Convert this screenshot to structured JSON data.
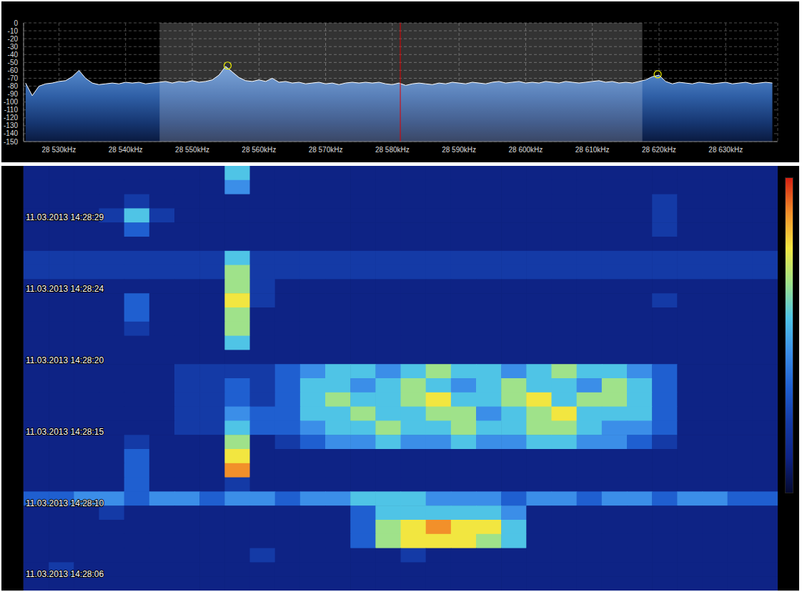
{
  "chart_data": [
    {
      "type": "area",
      "x": [
        28525,
        28526,
        28527,
        28528,
        28529,
        28530,
        28531,
        28532,
        28533,
        28534,
        28535,
        28536,
        28537,
        28538,
        28539,
        28540,
        28541,
        28542,
        28543,
        28544,
        28545,
        28546,
        28547,
        28548,
        28549,
        28550,
        28551,
        28552,
        28553,
        28554,
        28555,
        28556,
        28557,
        28558,
        28559,
        28560,
        28561,
        28562,
        28563,
        28564,
        28565,
        28566,
        28567,
        28568,
        28569,
        28570,
        28571,
        28572,
        28573,
        28574,
        28575,
        28576,
        28577,
        28578,
        28579,
        28580,
        28581,
        28582,
        28583,
        28584,
        28585,
        28586,
        28587,
        28588,
        28589,
        28590,
        28591,
        28592,
        28593,
        28594,
        28595,
        28596,
        28597,
        28598,
        28599,
        28600,
        28601,
        28602,
        28603,
        28604,
        28605,
        28606,
        28607,
        28608,
        28609,
        28610,
        28611,
        28612,
        28613,
        28614,
        28615,
        28616,
        28617,
        28618,
        28619,
        28620,
        28621,
        28622,
        28623,
        28624,
        28625,
        28626,
        28627,
        28628,
        28629,
        28630,
        28631,
        28632,
        28633,
        28634,
        28635,
        28636,
        28637
      ],
      "values": [
        -76,
        -92,
        -80,
        -77,
        -76,
        -74,
        -73,
        -68,
        -60,
        -70,
        -76,
        -78,
        -77,
        -76,
        -77,
        -75,
        -76,
        -75,
        -77,
        -76,
        -75,
        -74,
        -76,
        -74,
        -75,
        -73,
        -75,
        -74,
        -72,
        -66,
        -55,
        -62,
        -69,
        -73,
        -74,
        -72,
        -74,
        -70,
        -75,
        -74,
        -76,
        -75,
        -77,
        -76,
        -75,
        -77,
        -76,
        -78,
        -76,
        -75,
        -76,
        -75,
        -76,
        -75,
        -77,
        -78,
        -76,
        -79,
        -77,
        -76,
        -77,
        -78,
        -76,
        -77,
        -75,
        -76,
        -77,
        -75,
        -76,
        -77,
        -75,
        -74,
        -76,
        -75,
        -74,
        -76,
        -75,
        -76,
        -74,
        -75,
        -76,
        -74,
        -75,
        -76,
        -75,
        -74,
        -73,
        -75,
        -74,
        -76,
        -75,
        -76,
        -74,
        -72,
        -68,
        -66,
        -74,
        -77,
        -75,
        -76,
        -77,
        -75,
        -76,
        -77,
        -76,
        -75,
        -77,
        -76,
        -75,
        -77,
        -76,
        -75,
        -76
      ],
      "color": "#ffffff",
      "xlim": [
        28524.7,
        28637.8
      ],
      "xticks": [
        {
          "value": 28530,
          "label": "28 530kHz"
        },
        {
          "value": 28540,
          "label": "28 540kHz"
        },
        {
          "value": 28550,
          "label": "28 550kHz"
        },
        {
          "value": 28560,
          "label": "28 560kHz"
        },
        {
          "value": 28570,
          "label": "28 570kHz"
        },
        {
          "value": 28580,
          "label": "28 580kHz"
        },
        {
          "value": 28590,
          "label": "28 590kHz"
        },
        {
          "value": 28600,
          "label": "28 600kHz"
        },
        {
          "value": 28610,
          "label": "28 610kHz"
        },
        {
          "value": 28620,
          "label": "28 620kHz"
        },
        {
          "value": 28630,
          "label": "28 630kHz"
        }
      ],
      "ylim": [
        -150,
        0
      ],
      "yticks": [
        0,
        -10,
        -20,
        -30,
        -40,
        -50,
        -60,
        -70,
        -80,
        -90,
        -100,
        -110,
        -120,
        -130,
        -140,
        -150
      ],
      "grid": true,
      "filter_band": [
        28545.1,
        28617.5
      ],
      "center_frequency": 28581.2,
      "peaks": {
        "x": [
          28555.3,
          28619.8
        ],
        "y": [
          -54,
          -65
        ]
      }
    },
    {
      "type": "heatmap",
      "xlim": [
        28524.7,
        28637.8
      ],
      "ylim": [
        0,
        30
      ],
      "yticks": [
        {
          "value": 3.64,
          "label": "11.03.2013 14:28:29"
        },
        {
          "value": 8.69,
          "label": "11.03.2013 14:28:24"
        },
        {
          "value": 13.74,
          "label": "11.03.2013 14:28:20"
        },
        {
          "value": 18.79,
          "label": "11.03.2013 14:28:15"
        },
        {
          "value": 23.84,
          "label": "11.03.2013 14:28:10"
        },
        {
          "value": 28.84,
          "label": "11.03.2013 14:28:06"
        }
      ],
      "tick_labels": "y",
      "cells": [
        [
          1,
          1,
          1,
          1,
          1,
          1,
          1,
          1,
          5,
          1,
          1,
          1,
          1,
          1,
          1,
          1,
          1,
          1,
          1,
          1,
          1,
          1,
          1,
          1,
          1,
          1,
          1,
          1,
          1,
          1
        ],
        [
          1,
          1,
          1,
          1,
          1,
          1,
          1,
          1,
          4,
          1,
          1,
          1,
          1,
          1,
          1,
          1,
          1,
          1,
          1,
          1,
          1,
          1,
          1,
          1,
          1,
          1,
          1,
          1,
          1,
          1
        ],
        [
          1,
          1,
          1,
          1,
          2,
          1,
          1,
          1,
          1,
          1,
          1,
          1,
          1,
          1,
          1,
          1,
          1,
          1,
          1,
          1,
          1,
          1,
          1,
          1,
          1,
          2,
          1,
          1,
          1,
          1
        ],
        [
          1,
          1,
          1,
          2,
          5,
          2,
          1,
          1,
          1,
          1,
          1,
          1,
          1,
          1,
          1,
          1,
          1,
          1,
          1,
          1,
          1,
          1,
          1,
          1,
          1,
          2,
          1,
          1,
          1,
          1
        ],
        [
          1,
          1,
          1,
          1,
          3,
          1,
          1,
          1,
          1,
          1,
          1,
          1,
          1,
          1,
          1,
          1,
          1,
          1,
          1,
          1,
          1,
          1,
          1,
          1,
          1,
          2,
          1,
          1,
          1,
          1
        ],
        [
          1,
          1,
          1,
          1,
          1,
          1,
          1,
          1,
          1,
          1,
          1,
          1,
          1,
          1,
          1,
          1,
          1,
          1,
          1,
          1,
          1,
          1,
          1,
          1,
          1,
          1,
          1,
          1,
          1,
          1
        ],
        [
          2,
          2,
          2,
          2,
          2,
          2,
          2,
          2,
          5,
          2,
          2,
          2,
          2,
          2,
          2,
          2,
          2,
          2,
          2,
          2,
          2,
          2,
          2,
          2,
          2,
          2,
          2,
          2,
          2,
          2
        ],
        [
          2,
          2,
          2,
          2,
          2,
          2,
          2,
          2,
          6,
          2,
          2,
          2,
          2,
          2,
          2,
          2,
          2,
          2,
          2,
          2,
          2,
          2,
          2,
          2,
          2,
          2,
          2,
          2,
          2,
          2
        ],
        [
          1,
          1,
          1,
          1,
          1,
          1,
          1,
          1,
          6,
          2,
          1,
          1,
          1,
          1,
          1,
          1,
          1,
          1,
          1,
          1,
          1,
          1,
          1,
          1,
          1,
          1,
          1,
          1,
          1,
          1
        ],
        [
          1,
          1,
          1,
          1,
          3,
          1,
          1,
          1,
          7,
          2,
          1,
          1,
          1,
          1,
          1,
          1,
          1,
          1,
          1,
          1,
          1,
          1,
          1,
          1,
          1,
          2,
          1,
          1,
          1,
          1
        ],
        [
          1,
          1,
          1,
          1,
          3,
          1,
          1,
          1,
          6,
          1,
          1,
          1,
          1,
          1,
          1,
          1,
          1,
          1,
          1,
          1,
          1,
          1,
          1,
          1,
          1,
          1,
          1,
          1,
          1,
          1
        ],
        [
          1,
          1,
          1,
          1,
          2,
          1,
          1,
          1,
          6,
          1,
          1,
          1,
          1,
          1,
          1,
          1,
          1,
          1,
          1,
          1,
          1,
          1,
          1,
          1,
          1,
          1,
          1,
          1,
          1,
          1
        ],
        [
          1,
          1,
          1,
          1,
          1,
          1,
          1,
          1,
          5,
          1,
          1,
          1,
          1,
          1,
          1,
          1,
          1,
          1,
          1,
          1,
          1,
          1,
          1,
          1,
          1,
          1,
          1,
          1,
          1,
          1
        ],
        [
          1,
          1,
          1,
          1,
          1,
          1,
          1,
          1,
          1,
          1,
          1,
          1,
          1,
          1,
          1,
          1,
          1,
          1,
          1,
          1,
          1,
          1,
          1,
          1,
          1,
          1,
          1,
          1,
          1,
          1
        ],
        [
          1,
          1,
          1,
          1,
          1,
          1,
          2,
          2,
          2,
          2,
          3,
          4,
          5,
          5,
          4,
          5,
          6,
          5,
          5,
          4,
          5,
          6,
          5,
          5,
          4,
          3,
          1,
          1,
          1,
          1
        ],
        [
          1,
          1,
          1,
          1,
          1,
          1,
          2,
          2,
          3,
          2,
          3,
          5,
          5,
          4,
          5,
          6,
          5,
          4,
          5,
          6,
          5,
          5,
          4,
          6,
          5,
          3,
          1,
          1,
          1,
          1
        ],
        [
          1,
          1,
          1,
          1,
          1,
          1,
          2,
          2,
          3,
          2,
          3,
          5,
          6,
          5,
          5,
          6,
          7,
          5,
          5,
          6,
          7,
          5,
          6,
          6,
          5,
          3,
          1,
          1,
          1,
          1
        ],
        [
          1,
          1,
          1,
          1,
          1,
          1,
          2,
          2,
          4,
          3,
          3,
          5,
          5,
          6,
          5,
          5,
          6,
          6,
          4,
          5,
          6,
          7,
          5,
          5,
          5,
          3,
          1,
          1,
          1,
          1
        ],
        [
          1,
          1,
          1,
          1,
          1,
          1,
          2,
          2,
          5,
          3,
          3,
          4,
          5,
          5,
          6,
          5,
          5,
          6,
          5,
          5,
          6,
          6,
          5,
          4,
          4,
          3,
          1,
          1,
          1,
          1
        ],
        [
          1,
          1,
          1,
          1,
          2,
          1,
          1,
          1,
          6,
          1,
          2,
          3,
          4,
          4,
          5,
          4,
          4,
          5,
          4,
          4,
          5,
          5,
          4,
          4,
          3,
          2,
          1,
          1,
          1,
          1
        ],
        [
          1,
          1,
          1,
          1,
          3,
          1,
          1,
          1,
          7,
          1,
          1,
          1,
          1,
          1,
          1,
          1,
          1,
          1,
          1,
          1,
          1,
          1,
          1,
          1,
          1,
          1,
          1,
          1,
          1,
          1
        ],
        [
          1,
          1,
          1,
          1,
          3,
          1,
          1,
          1,
          8,
          1,
          1,
          1,
          1,
          1,
          1,
          1,
          1,
          1,
          1,
          1,
          1,
          1,
          1,
          1,
          1,
          1,
          1,
          1,
          1,
          1
        ],
        [
          1,
          1,
          1,
          1,
          3,
          1,
          1,
          1,
          2,
          1,
          1,
          1,
          1,
          1,
          1,
          1,
          1,
          1,
          1,
          1,
          1,
          1,
          1,
          1,
          1,
          1,
          1,
          1,
          1,
          1
        ],
        [
          3,
          3,
          4,
          4,
          3,
          4,
          4,
          3,
          4,
          4,
          3,
          4,
          4,
          5,
          5,
          5,
          4,
          4,
          4,
          3,
          4,
          4,
          3,
          4,
          4,
          3,
          4,
          4,
          3,
          3
        ],
        [
          1,
          1,
          1,
          2,
          1,
          1,
          1,
          1,
          1,
          1,
          1,
          1,
          1,
          3,
          5,
          5,
          5,
          5,
          5,
          4,
          1,
          1,
          1,
          1,
          1,
          1,
          1,
          1,
          1,
          1
        ],
        [
          1,
          1,
          1,
          1,
          1,
          1,
          1,
          1,
          1,
          1,
          1,
          1,
          1,
          3,
          6,
          7,
          8,
          7,
          7,
          5,
          1,
          1,
          1,
          1,
          1,
          1,
          1,
          1,
          1,
          1
        ],
        [
          1,
          1,
          1,
          1,
          1,
          1,
          1,
          1,
          1,
          1,
          1,
          1,
          1,
          3,
          6,
          7,
          7,
          7,
          6,
          5,
          1,
          1,
          1,
          1,
          1,
          1,
          1,
          1,
          1,
          1
        ],
        [
          1,
          1,
          1,
          1,
          1,
          1,
          1,
          1,
          1,
          2,
          1,
          1,
          1,
          1,
          1,
          2,
          1,
          1,
          1,
          1,
          1,
          1,
          1,
          1,
          1,
          1,
          1,
          1,
          1,
          1
        ],
        [
          1,
          2,
          1,
          1,
          1,
          1,
          1,
          1,
          1,
          1,
          1,
          1,
          1,
          1,
          1,
          1,
          1,
          1,
          1,
          1,
          1,
          1,
          1,
          1,
          1,
          1,
          1,
          1,
          1,
          1
        ],
        [
          1,
          1,
          1,
          1,
          1,
          1,
          1,
          1,
          1,
          1,
          1,
          1,
          1,
          1,
          1,
          1,
          1,
          1,
          1,
          1,
          1,
          1,
          1,
          1,
          1,
          1,
          1,
          1,
          1,
          1
        ]
      ],
      "colorbar": {
        "range": [
          0,
          9
        ]
      }
    }
  ]
}
